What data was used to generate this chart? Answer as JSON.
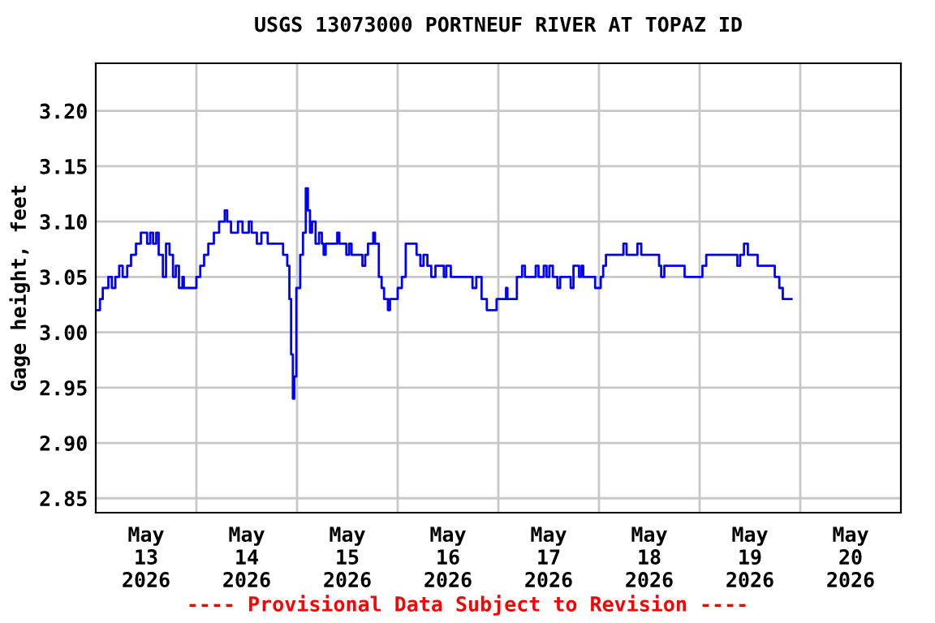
{
  "chart_data": {
    "type": "step",
    "title": "USGS 13073000 PORTNEUF RIVER AT TOPAZ ID",
    "ylabel": "Gage height, feet",
    "annotations": [
      "---- Provisional Data Subject to Revision ----"
    ],
    "xlim": [
      "2026-05-13T00:00",
      "2026-05-21T00:00"
    ],
    "xticks": [
      {
        "value": "2026-05-13T12:00",
        "label": "May\n13\n2026"
      },
      {
        "value": "2026-05-14T00:00",
        "label": null
      },
      {
        "value": "2026-05-14T12:00",
        "label": "May\n14\n2026"
      },
      {
        "value": "2026-05-15T00:00",
        "label": null
      },
      {
        "value": "2026-05-15T12:00",
        "label": "May\n15\n2026"
      },
      {
        "value": "2026-05-16T00:00",
        "label": null
      },
      {
        "value": "2026-05-16T12:00",
        "label": "May\n16\n2026"
      },
      {
        "value": "2026-05-17T00:00",
        "label": null
      },
      {
        "value": "2026-05-17T12:00",
        "label": "May\n17\n2026"
      },
      {
        "value": "2026-05-18T00:00",
        "label": null
      },
      {
        "value": "2026-05-18T12:00",
        "label": "May\n18\n2026"
      },
      {
        "value": "2026-05-19T00:00",
        "label": null
      },
      {
        "value": "2026-05-19T12:00",
        "label": "May\n19\n2026"
      },
      {
        "value": "2026-05-20T00:00",
        "label": null
      },
      {
        "value": "2026-05-20T12:00",
        "label": "May\n20\n2026"
      }
    ],
    "ylim": [
      2.837,
      3.243
    ],
    "yticks": [
      {
        "value": 2.85,
        "label": "2.85"
      },
      {
        "value": 2.9,
        "label": "2.90"
      },
      {
        "value": 2.95,
        "label": "2.95"
      },
      {
        "value": 3.0,
        "label": "3.00"
      },
      {
        "value": 3.05,
        "label": "3.05"
      },
      {
        "value": 3.1,
        "label": "3.10"
      },
      {
        "value": 3.15,
        "label": "3.15"
      },
      {
        "value": 3.2,
        "label": "3.20"
      }
    ],
    "grid": true,
    "legend": false,
    "series": [
      {
        "color": "#0000ff",
        "x": [
          "2026-05-13T00:00",
          "2026-05-13T01:00",
          "2026-05-13T01:40",
          "2026-05-13T03:00",
          "2026-05-13T03:50",
          "2026-05-13T04:40",
          "2026-05-13T05:35",
          "2026-05-13T06:25",
          "2026-05-13T07:30",
          "2026-05-13T08:25",
          "2026-05-13T09:35",
          "2026-05-13T10:45",
          "2026-05-13T12:15",
          "2026-05-13T13:00",
          "2026-05-13T13:40",
          "2026-05-13T14:25",
          "2026-05-13T15:00",
          "2026-05-13T16:00",
          "2026-05-13T16:45",
          "2026-05-13T17:35",
          "2026-05-13T18:25",
          "2026-05-13T19:05",
          "2026-05-13T19:50",
          "2026-05-13T20:40",
          "2026-05-13T21:00",
          "2026-05-14T00:00",
          "2026-05-14T00:55",
          "2026-05-14T01:50",
          "2026-05-14T02:50",
          "2026-05-14T04:10",
          "2026-05-14T05:25",
          "2026-05-14T06:45",
          "2026-05-14T07:20",
          "2026-05-14T08:15",
          "2026-05-14T09:55",
          "2026-05-14T11:00",
          "2026-05-14T12:30",
          "2026-05-14T13:10",
          "2026-05-14T14:25",
          "2026-05-14T15:30",
          "2026-05-14T17:00",
          "2026-05-14T20:40",
          "2026-05-14T21:40",
          "2026-05-14T22:10",
          "2026-05-14T22:35",
          "2026-05-14T23:00",
          "2026-05-14T23:20",
          "2026-05-14T23:50",
          "2026-05-15T00:45",
          "2026-05-15T01:25",
          "2026-05-15T02:05",
          "2026-05-15T02:35",
          "2026-05-15T03:05",
          "2026-05-15T03:35",
          "2026-05-15T04:25",
          "2026-05-15T05:15",
          "2026-05-15T05:55",
          "2026-05-15T06:20",
          "2026-05-15T06:50",
          "2026-05-15T09:35",
          "2026-05-15T10:05",
          "2026-05-15T11:45",
          "2026-05-15T12:25",
          "2026-05-15T13:00",
          "2026-05-15T15:35",
          "2026-05-15T16:15",
          "2026-05-15T16:55",
          "2026-05-15T18:10",
          "2026-05-15T18:35",
          "2026-05-15T19:30",
          "2026-05-15T20:10",
          "2026-05-15T20:45",
          "2026-05-15T21:40",
          "2026-05-15T22:10",
          "2026-05-16T00:00",
          "2026-05-16T01:00",
          "2026-05-16T01:55",
          "2026-05-16T04:30",
          "2026-05-16T05:25",
          "2026-05-16T06:10",
          "2026-05-16T07:05",
          "2026-05-16T08:00",
          "2026-05-16T09:00",
          "2026-05-16T11:00",
          "2026-05-16T11:35",
          "2026-05-16T12:40",
          "2026-05-16T17:50",
          "2026-05-16T18:45",
          "2026-05-16T20:00",
          "2026-05-16T21:15",
          "2026-05-16T23:35",
          "2026-05-17T01:50",
          "2026-05-17T02:10",
          "2026-05-17T04:25",
          "2026-05-17T05:40",
          "2026-05-17T06:20",
          "2026-05-17T08:55",
          "2026-05-17T09:35",
          "2026-05-17T10:50",
          "2026-05-17T11:30",
          "2026-05-17T12:10",
          "2026-05-17T13:00",
          "2026-05-17T14:05",
          "2026-05-17T14:45",
          "2026-05-17T17:15",
          "2026-05-17T17:55",
          "2026-05-17T19:15",
          "2026-05-17T19:50",
          "2026-05-17T20:15",
          "2026-05-17T23:05",
          "2026-05-18T00:25",
          "2026-05-18T01:00",
          "2026-05-18T01:40",
          "2026-05-18T05:50",
          "2026-05-18T06:35",
          "2026-05-18T09:10",
          "2026-05-18T10:05",
          "2026-05-18T14:20",
          "2026-05-18T14:50",
          "2026-05-18T15:35",
          "2026-05-18T20:25",
          "2026-05-19T00:40",
          "2026-05-19T01:35",
          "2026-05-19T09:00",
          "2026-05-19T09:40",
          "2026-05-19T10:35",
          "2026-05-19T11:30",
          "2026-05-19T13:50",
          "2026-05-19T17:55",
          "2026-05-19T19:00",
          "2026-05-19T19:50",
          "2026-05-19T21:55"
        ],
        "values": [
          3.02,
          3.03,
          3.04,
          3.05,
          3.04,
          3.05,
          3.06,
          3.05,
          3.06,
          3.07,
          3.08,
          3.09,
          3.08,
          3.09,
          3.08,
          3.09,
          3.07,
          3.05,
          3.08,
          3.07,
          3.05,
          3.06,
          3.04,
          3.05,
          3.04,
          3.05,
          3.06,
          3.07,
          3.08,
          3.09,
          3.1,
          3.11,
          3.1,
          3.09,
          3.1,
          3.09,
          3.1,
          3.09,
          3.08,
          3.09,
          3.08,
          3.07,
          3.06,
          3.03,
          2.98,
          2.94,
          2.96,
          3.04,
          3.07,
          3.09,
          3.13,
          3.11,
          3.09,
          3.1,
          3.08,
          3.09,
          3.08,
          3.07,
          3.08,
          3.09,
          3.08,
          3.07,
          3.08,
          3.07,
          3.06,
          3.07,
          3.08,
          3.09,
          3.08,
          3.05,
          3.04,
          3.03,
          3.02,
          3.03,
          3.04,
          3.05,
          3.08,
          3.07,
          3.06,
          3.07,
          3.06,
          3.05,
          3.06,
          3.05,
          3.06,
          3.05,
          3.04,
          3.05,
          3.03,
          3.02,
          3.03,
          3.04,
          3.03,
          3.05,
          3.06,
          3.05,
          3.06,
          3.05,
          3.06,
          3.05,
          3.06,
          3.05,
          3.04,
          3.05,
          3.04,
          3.06,
          3.05,
          3.06,
          3.05,
          3.04,
          3.05,
          3.06,
          3.07,
          3.08,
          3.07,
          3.08,
          3.07,
          3.06,
          3.05,
          3.06,
          3.05,
          3.06,
          3.07,
          3.06,
          3.07,
          3.08,
          3.07,
          3.06,
          3.05,
          3.04,
          3.03,
          3.03
        ]
      }
    ]
  }
}
